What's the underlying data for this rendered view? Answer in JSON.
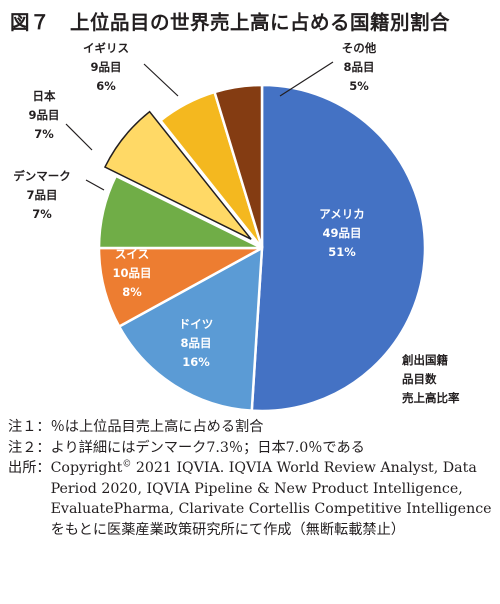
{
  "title": "図７　上位品目の世界売上高に占める国籍別割合",
  "chart_data": {
    "type": "pie",
    "title": "図７　上位品目の世界売上高に占める国籍別割合",
    "legend_note": [
      "創出国籍",
      "品目数",
      "売上高比率"
    ],
    "slices": [
      {
        "name": "アメリカ",
        "items": "49品目",
        "percent_label": "51%",
        "value": 51,
        "color": "#4472c4",
        "exploded": false,
        "label_inside": true,
        "label_color": "#ffffff"
      },
      {
        "name": "ドイツ",
        "items": "8品目",
        "percent_label": "16%",
        "value": 16,
        "color": "#5b9bd5",
        "exploded": false,
        "label_inside": true,
        "label_color": "#ffffff"
      },
      {
        "name": "スイス",
        "items": "10品目",
        "percent_label": "8%",
        "value": 8,
        "color": "#ed7d31",
        "exploded": false,
        "label_inside": true,
        "label_color": "#ffffff"
      },
      {
        "name": "デンマーク",
        "items": "7品目",
        "percent_label": "7%",
        "value": 7.3,
        "color": "#70ad47",
        "exploded": false,
        "label_inside": false,
        "label_color": "#231f20"
      },
      {
        "name": "日本",
        "items": "9品目",
        "percent_label": "7%",
        "value": 7.0,
        "color": "#ffd966",
        "exploded": true,
        "label_inside": false,
        "label_color": "#231f20"
      },
      {
        "name": "イギリス",
        "items": "9品目",
        "percent_label": "6%",
        "value": 6,
        "color": "#f4b81f",
        "exploded": false,
        "label_inside": false,
        "label_color": "#231f20"
      },
      {
        "name": "その他",
        "items": "8品目",
        "percent_label": "5%",
        "value": 4.7,
        "color": "#843c12",
        "exploded": false,
        "label_inside": false,
        "label_color": "#231f20"
      }
    ]
  },
  "notes": [
    {
      "head": "注１：",
      "text": "％は上位品目売上高に占める割合"
    },
    {
      "head": "注２：",
      "text": "より詳細にはデンマーク7.3％；日本7.0％である"
    },
    {
      "head": "出所：",
      "text_pre": "Copyright",
      "text_sup": "©",
      "text_post": " 2021 IQVIA. IQVIA World Review Analyst, Data Period 2020, IQVIA Pipeline & New Product Intelligence, EvaluatePharma, Clarivate Cortellis Competitive Intelligence をもとに医薬産業政策研究所にて作成（無断転載禁止）"
    }
  ]
}
